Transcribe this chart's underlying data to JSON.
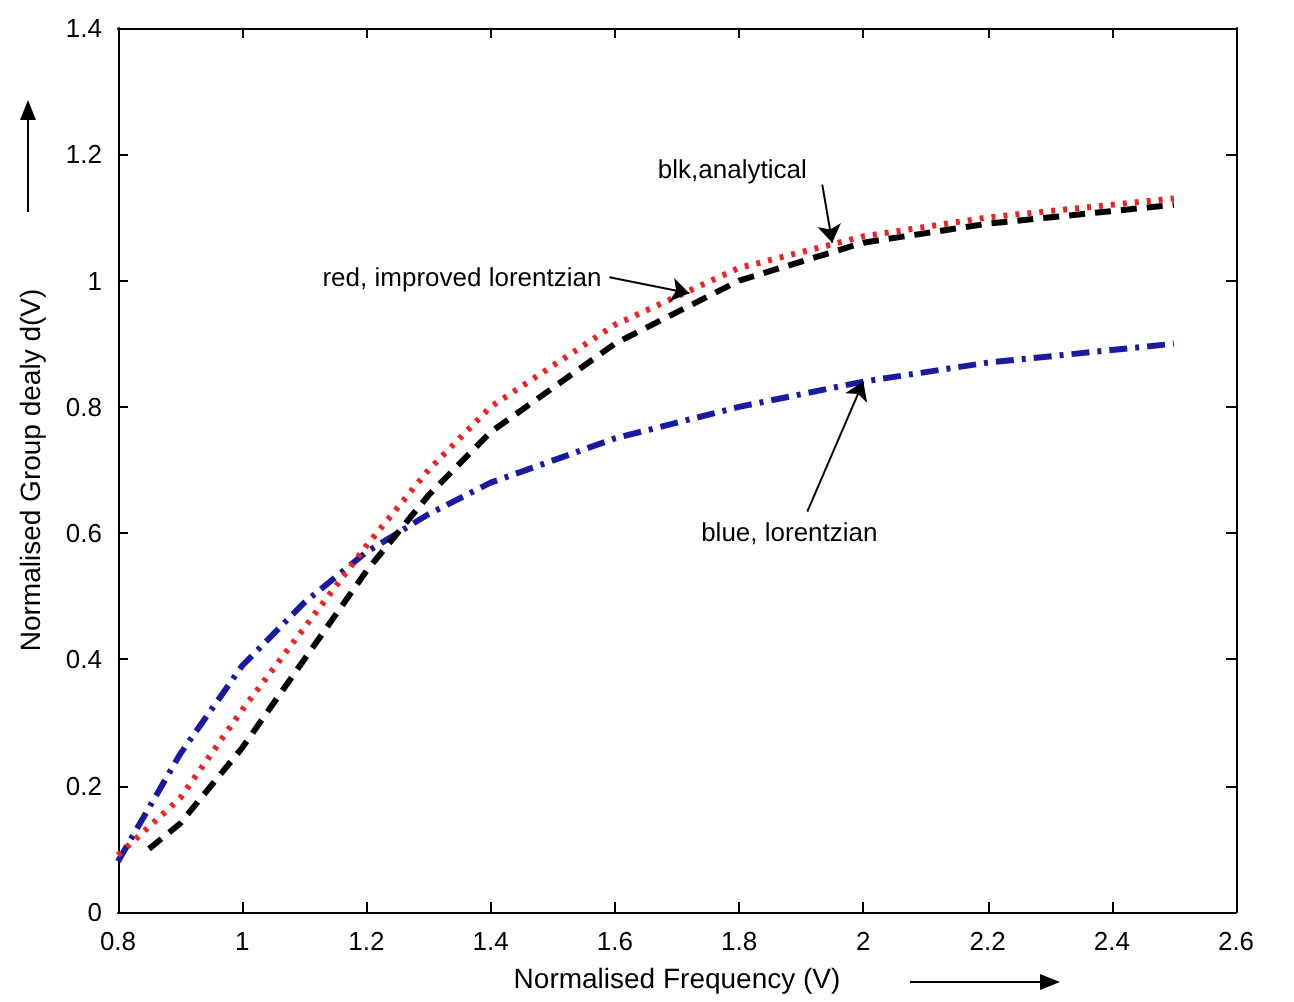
{
  "chart_data": {
    "type": "line",
    "xlabel": "Normalised Frequency (V)",
    "ylabel": "Normalised Group dealy d(V)",
    "xlim": [
      0.8,
      2.6
    ],
    "ylim": [
      0,
      1.4
    ],
    "xticks": [
      0.8,
      1,
      1.2,
      1.4,
      1.6,
      1.8,
      2,
      2.2,
      2.4,
      2.6
    ],
    "yticks": [
      0,
      0.2,
      0.4,
      0.6,
      0.8,
      1,
      1.2,
      1.4
    ],
    "grid": false,
    "marker": "none",
    "series": [
      {
        "color": "#1a1aa0",
        "line_style": "dashdot",
        "x": [
          0.8,
          0.9,
          1.0,
          1.1,
          1.2,
          1.3,
          1.4,
          1.6,
          1.8,
          2.0,
          2.2,
          2.5
        ],
        "values": [
          0.08,
          0.25,
          0.39,
          0.49,
          0.57,
          0.63,
          0.68,
          0.75,
          0.8,
          0.84,
          0.87,
          0.9
        ]
      },
      {
        "color": "#000000",
        "line_style": "dashed",
        "x": [
          0.85,
          0.9,
          1.0,
          1.1,
          1.2,
          1.3,
          1.4,
          1.6,
          1.8,
          2.0,
          2.2,
          2.5
        ],
        "values": [
          0.1,
          0.14,
          0.26,
          0.4,
          0.54,
          0.66,
          0.76,
          0.9,
          1.0,
          1.06,
          1.09,
          1.12
        ]
      },
      {
        "color": "#ee2222",
        "line_style": "dotted",
        "x": [
          0.8,
          0.9,
          1.0,
          1.1,
          1.2,
          1.3,
          1.4,
          1.6,
          1.8,
          2.0,
          2.2,
          2.5
        ],
        "values": [
          0.09,
          0.18,
          0.32,
          0.45,
          0.58,
          0.7,
          0.8,
          0.93,
          1.02,
          1.07,
          1.1,
          1.13
        ]
      }
    ],
    "annotations": [
      {
        "text": "blk,analytical",
        "x": 1.95,
        "y": 1.06
      },
      {
        "text": "red, improved lorentzian",
        "x": 1.72,
        "y": 0.98
      },
      {
        "text": "blue, lorentzian",
        "x": 2.0,
        "y": 0.84
      }
    ]
  }
}
